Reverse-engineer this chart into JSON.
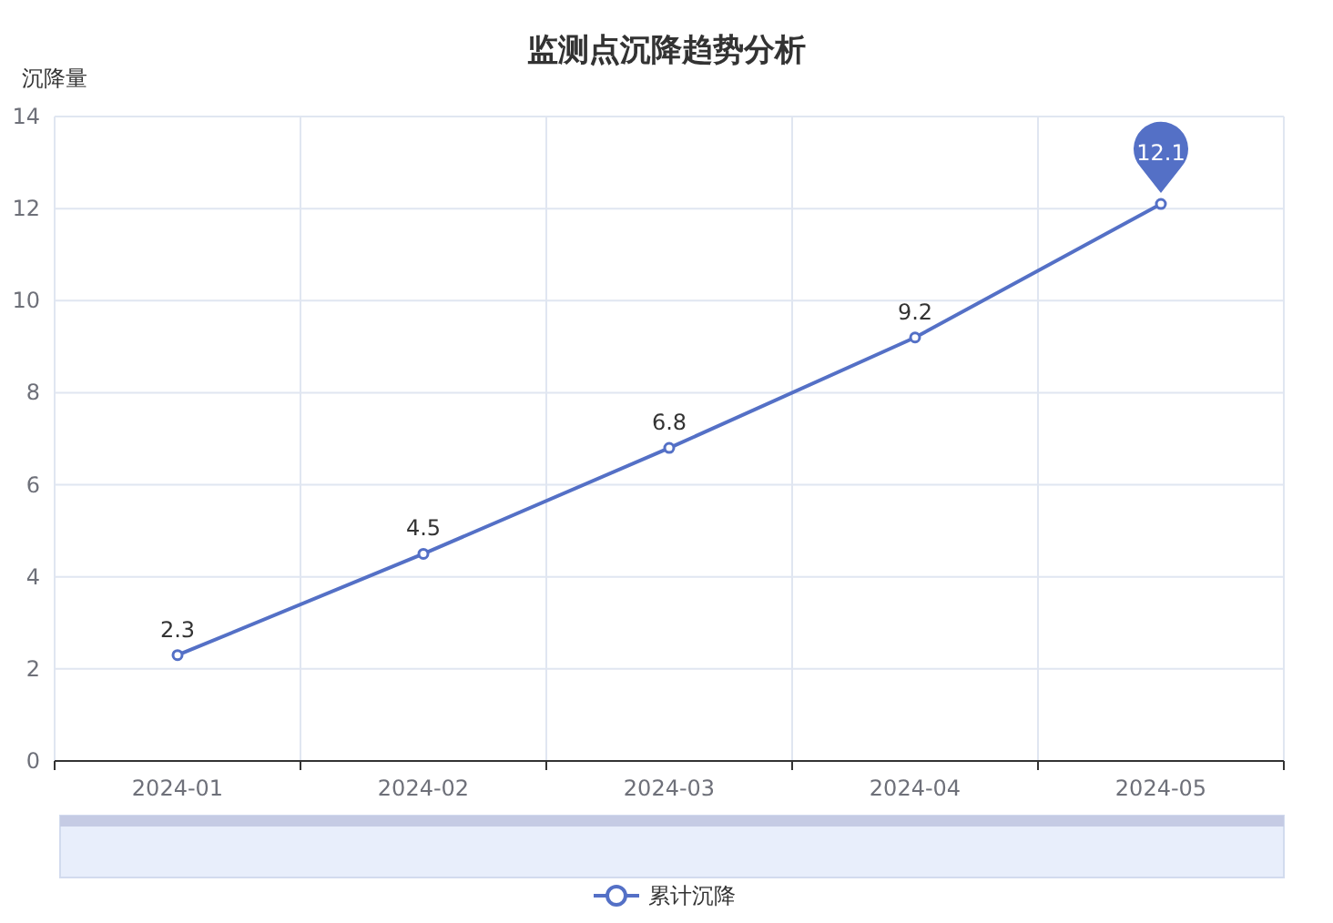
{
  "chart_data": {
    "type": "line",
    "title": "监测点沉降趋势分析",
    "ylabel": "沉降量",
    "categories": [
      "2024-01",
      "2024-02",
      "2024-03",
      "2024-04",
      "2024-05"
    ],
    "series": [
      {
        "name": "累计沉降",
        "color": "#5470c6",
        "values": [
          2.3,
          4.5,
          6.8,
          9.2,
          12.1
        ],
        "value_labels": [
          "2.3",
          "4.5",
          "6.8",
          "9.2",
          null
        ]
      }
    ],
    "annotations": [
      {
        "text": "12.1",
        "x": "2024-05",
        "y": 12.1
      }
    ],
    "ylim": [
      0,
      14
    ],
    "yticks": [
      0,
      2,
      4,
      6,
      8,
      10,
      12,
      14
    ],
    "grid": true,
    "legend": "bottom",
    "marker": "circle",
    "line_style": "solid"
  }
}
